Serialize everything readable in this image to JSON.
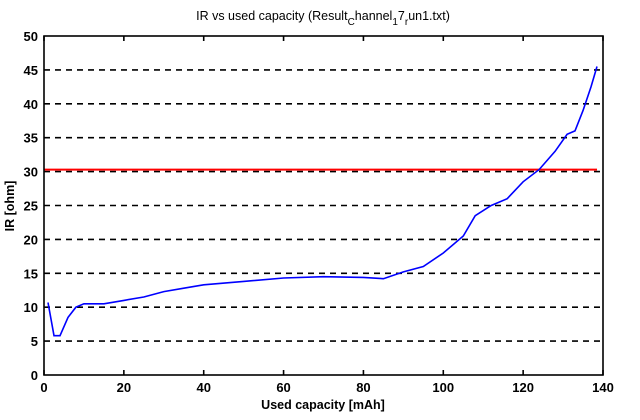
{
  "chart_data": {
    "type": "line",
    "title_main": "IR vs used capacity (Result",
    "title_sub1": "C",
    "title_part2": "hannel",
    "title_sub2": "1",
    "title_part3": "7",
    "title_sub3": "r",
    "title_part4": "un1.txt)",
    "xlabel": "Used capacity [mAh]",
    "ylabel": "IR [ohm]",
    "xlim": [
      0,
      140
    ],
    "ylim": [
      0,
      50
    ],
    "xticks": [
      "0",
      "20",
      "40",
      "60",
      "80",
      "100",
      "120",
      "140"
    ],
    "yticks": [
      "0",
      "5",
      "10",
      "15",
      "20",
      "25",
      "30",
      "35",
      "40",
      "45",
      "50"
    ],
    "grid": "horizontal dashed",
    "threshold": {
      "value": 30.3,
      "color": "#ff0000"
    },
    "series": [
      {
        "name": "IR",
        "color": "#0000ff",
        "x": [
          1,
          2.5,
          4,
          6,
          8,
          10,
          15,
          20,
          25,
          30,
          35,
          40,
          50,
          60,
          70,
          80,
          85,
          90,
          95,
          100,
          105,
          108,
          112,
          116,
          120,
          124,
          128,
          131,
          133,
          135,
          137,
          138.5
        ],
        "y": [
          10.7,
          5.8,
          5.8,
          8.5,
          10,
          10.5,
          10.5,
          11,
          11.5,
          12.3,
          12.8,
          13.3,
          13.8,
          14.3,
          14.5,
          14.4,
          14.2,
          15.2,
          16,
          18,
          20.5,
          23.5,
          25,
          26,
          28.5,
          30.3,
          33,
          35.5,
          36,
          39,
          42.5,
          45.5
        ]
      }
    ]
  }
}
